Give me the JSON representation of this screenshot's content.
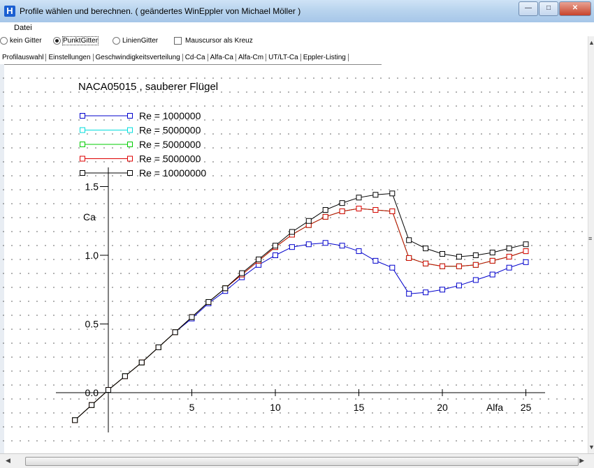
{
  "window": {
    "title": "Profile wählen und berechnen. ( geändertes WinEppler von Michael Möller )",
    "icon": "H"
  },
  "menu": {
    "items": [
      "Datei"
    ]
  },
  "options": {
    "kein_gitter": "kein Gitter",
    "punkt_gitter": "PunktGitter",
    "linien_gitter": "LinienGitter",
    "mauscursor": "Mauscursor als Kreuz",
    "selected": "PunktGitter"
  },
  "tabs": [
    "Profilauswahl",
    "Einstellungen",
    "Geschwindigkeitsverteilung",
    "Cd-Ca",
    "Alfa-Ca",
    "Alfa-Cm",
    "UT/LT-Ca",
    "Eppler-Listing"
  ],
  "active_tab": "Alfa-Ca",
  "chart_data": {
    "type": "line",
    "title": "NACA05015 , sauberer Flügel",
    "xlabel": "Alfa",
    "ylabel": "Ca",
    "xlim": [
      -2,
      26
    ],
    "ylim": [
      -0.2,
      1.6
    ],
    "xticks": [
      5,
      10,
      15,
      20,
      25
    ],
    "yticks": [
      0.0,
      0.5,
      1.0,
      1.5
    ],
    "grid": "dotted",
    "legend": "top-left",
    "series": [
      {
        "name": "Re = 1000000",
        "color": "#0000cc",
        "x": [
          -2,
          -1,
          0,
          1,
          2,
          3,
          4,
          5,
          6,
          7,
          8,
          9,
          10,
          11,
          12,
          13,
          14,
          15,
          16,
          17,
          18,
          19,
          20,
          21,
          22,
          23,
          24,
          25
        ],
        "y": [
          -0.2,
          -0.09,
          0.02,
          0.12,
          0.22,
          0.33,
          0.44,
          0.54,
          0.65,
          0.74,
          0.84,
          0.93,
          1.0,
          1.06,
          1.08,
          1.09,
          1.07,
          1.03,
          0.96,
          0.91,
          0.72,
          0.73,
          0.75,
          0.78,
          0.82,
          0.86,
          0.91,
          0.95
        ]
      },
      {
        "name": "Re = 5000000",
        "color": "#00dddd",
        "x": [
          -2,
          -1,
          0,
          1,
          2,
          3,
          4,
          5,
          6,
          7,
          8,
          9,
          10,
          11,
          12,
          13,
          14,
          15,
          16,
          17,
          18,
          19,
          20,
          21,
          22,
          23,
          24,
          25
        ],
        "y": [
          -0.2,
          -0.09,
          0.02,
          0.12,
          0.22,
          0.33,
          0.44,
          0.55,
          0.66,
          0.76,
          0.86,
          0.96,
          1.06,
          1.15,
          1.22,
          1.28,
          1.32,
          1.34,
          1.33,
          1.32,
          0.98,
          0.94,
          0.92,
          0.92,
          0.93,
          0.96,
          0.99,
          1.03
        ]
      },
      {
        "name": "Re = 5000000",
        "color": "#00cc00",
        "x": [
          -2,
          -1,
          0,
          1,
          2,
          3,
          4,
          5,
          6,
          7,
          8,
          9,
          10,
          11,
          12,
          13,
          14,
          15,
          16,
          17,
          18,
          19,
          20,
          21,
          22,
          23,
          24,
          25
        ],
        "y": [
          -0.2,
          -0.09,
          0.02,
          0.12,
          0.22,
          0.33,
          0.44,
          0.55,
          0.66,
          0.76,
          0.86,
          0.96,
          1.06,
          1.15,
          1.22,
          1.28,
          1.32,
          1.34,
          1.33,
          1.32,
          0.98,
          0.94,
          0.92,
          0.92,
          0.93,
          0.96,
          0.99,
          1.03
        ]
      },
      {
        "name": "Re = 5000000",
        "color": "#dd0000",
        "x": [
          -2,
          -1,
          0,
          1,
          2,
          3,
          4,
          5,
          6,
          7,
          8,
          9,
          10,
          11,
          12,
          13,
          14,
          15,
          16,
          17,
          18,
          19,
          20,
          21,
          22,
          23,
          24,
          25
        ],
        "y": [
          -0.2,
          -0.09,
          0.02,
          0.12,
          0.22,
          0.33,
          0.44,
          0.55,
          0.66,
          0.76,
          0.86,
          0.96,
          1.06,
          1.15,
          1.22,
          1.28,
          1.32,
          1.34,
          1.33,
          1.32,
          0.98,
          0.94,
          0.92,
          0.92,
          0.93,
          0.96,
          0.99,
          1.03
        ]
      },
      {
        "name": "Re = 10000000",
        "color": "#000000",
        "x": [
          -2,
          -1,
          0,
          1,
          2,
          3,
          4,
          5,
          6,
          7,
          8,
          9,
          10,
          11,
          12,
          13,
          14,
          15,
          16,
          17,
          18,
          19,
          20,
          21,
          22,
          23,
          24,
          25
        ],
        "y": [
          -0.2,
          -0.09,
          0.02,
          0.12,
          0.22,
          0.33,
          0.44,
          0.55,
          0.66,
          0.76,
          0.87,
          0.97,
          1.07,
          1.17,
          1.25,
          1.33,
          1.38,
          1.42,
          1.44,
          1.45,
          1.11,
          1.05,
          1.01,
          0.99,
          1.0,
          1.02,
          1.05,
          1.08
        ]
      }
    ]
  }
}
